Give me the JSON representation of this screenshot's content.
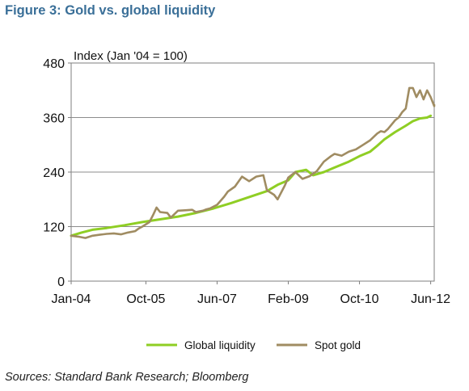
{
  "figure": {
    "title": "Figure 3: Gold vs. global liquidity",
    "source": "Sources: Standard Bank Research; Bloomberg"
  },
  "chart_data": {
    "type": "line",
    "ylabel": "Index (Jan '04 = 100)",
    "ylim": [
      0,
      480
    ],
    "yticks": [
      0,
      120,
      240,
      360,
      480
    ],
    "xlim": [
      0,
      102
    ],
    "xticks": [
      {
        "label": "Jan-04",
        "i": 0
      },
      {
        "label": "Oct-05",
        "i": 21
      },
      {
        "label": "Jun-07",
        "i": 41
      },
      {
        "label": "Feb-09",
        "i": 61
      },
      {
        "label": "Oct-10",
        "i": 81
      },
      {
        "label": "Jun-12",
        "i": 101
      }
    ],
    "grid": "horizontal",
    "legend_position": "bottom",
    "series": [
      {
        "name": "Global liquidity",
        "color": "#8fce24",
        "points": [
          [
            0,
            100
          ],
          [
            3,
            107
          ],
          [
            6,
            113
          ],
          [
            10,
            117
          ],
          [
            15,
            123
          ],
          [
            20,
            130
          ],
          [
            25,
            136
          ],
          [
            30,
            142
          ],
          [
            35,
            150
          ],
          [
            40,
            160
          ],
          [
            45,
            172
          ],
          [
            50,
            185
          ],
          [
            55,
            198
          ],
          [
            58,
            212
          ],
          [
            61,
            222
          ],
          [
            63,
            240
          ],
          [
            66,
            245
          ],
          [
            68,
            233
          ],
          [
            71,
            240
          ],
          [
            74,
            250
          ],
          [
            78,
            263
          ],
          [
            81,
            275
          ],
          [
            84,
            285
          ],
          [
            86,
            298
          ],
          [
            88,
            312
          ],
          [
            91,
            328
          ],
          [
            94,
            342
          ],
          [
            96,
            352
          ],
          [
            98,
            358
          ],
          [
            100,
            360
          ],
          [
            101,
            364
          ]
        ]
      },
      {
        "name": "Spot gold",
        "color": "#a08c62",
        "points": [
          [
            0,
            100
          ],
          [
            2,
            98
          ],
          [
            4,
            95
          ],
          [
            6,
            100
          ],
          [
            8,
            102
          ],
          [
            10,
            104
          ],
          [
            12,
            105
          ],
          [
            14,
            103
          ],
          [
            16,
            107
          ],
          [
            18,
            110
          ],
          [
            19,
            116
          ],
          [
            20,
            120
          ],
          [
            22,
            130
          ],
          [
            23,
            145
          ],
          [
            24,
            162
          ],
          [
            25,
            152
          ],
          [
            27,
            150
          ],
          [
            28,
            140
          ],
          [
            30,
            155
          ],
          [
            32,
            156
          ],
          [
            34,
            157
          ],
          [
            35,
            152
          ],
          [
            37,
            155
          ],
          [
            38,
            158
          ],
          [
            39,
            160
          ],
          [
            41,
            168
          ],
          [
            43,
            186
          ],
          [
            44,
            197
          ],
          [
            46,
            208
          ],
          [
            48,
            230
          ],
          [
            50,
            220
          ],
          [
            52,
            230
          ],
          [
            54,
            233
          ],
          [
            55,
            200
          ],
          [
            57,
            190
          ],
          [
            58,
            180
          ],
          [
            60,
            210
          ],
          [
            61,
            228
          ],
          [
            63,
            240
          ],
          [
            65,
            225
          ],
          [
            67,
            231
          ],
          [
            69,
            242
          ],
          [
            71,
            263
          ],
          [
            73,
            275
          ],
          [
            74,
            280
          ],
          [
            76,
            276
          ],
          [
            78,
            285
          ],
          [
            80,
            290
          ],
          [
            82,
            300
          ],
          [
            84,
            310
          ],
          [
            86,
            325
          ],
          [
            87,
            330
          ],
          [
            88,
            328
          ],
          [
            89,
            335
          ],
          [
            91,
            354
          ],
          [
            92,
            360
          ],
          [
            93,
            372
          ],
          [
            94,
            380
          ],
          [
            95,
            425
          ],
          [
            96,
            425
          ],
          [
            97,
            405
          ],
          [
            98,
            420
          ],
          [
            99,
            400
          ],
          [
            100,
            420
          ],
          [
            101,
            405
          ],
          [
            102,
            385
          ],
          [
            102,
            388
          ]
        ]
      }
    ]
  }
}
